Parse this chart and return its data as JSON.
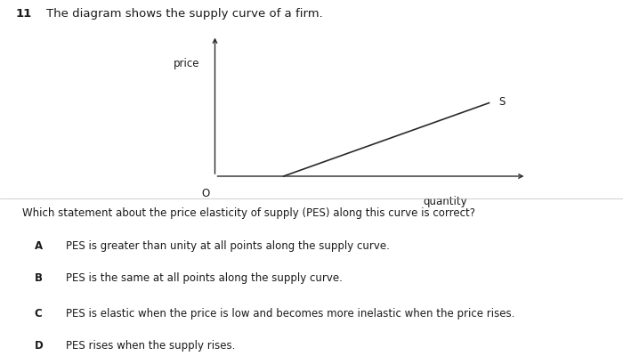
{
  "title_number": "11",
  "title_text": "The diagram shows the supply curve of a firm.",
  "price_label": "price",
  "quantity_label": "quantity",
  "origin_label": "O",
  "supply_label": "S",
  "question": "Which statement about the price elasticity of supply (PES) along this curve is correct?",
  "options": [
    {
      "label": "A",
      "text": "PES is greater than unity at all points along the supply curve."
    },
    {
      "label": "B",
      "text": "PES is the same at all points along the supply curve."
    },
    {
      "label": "C",
      "text": "PES is elastic when the price is low and becomes more inelastic when the price rises."
    },
    {
      "label": "D",
      "text": "PES rises when the supply rises."
    }
  ],
  "bg_color": "#ffffff",
  "line_color": "#2a2a2a",
  "text_color": "#1a1a1a",
  "font_size_title": 9.5,
  "font_size_labels": 8.5,
  "font_size_question": 8.5,
  "font_size_options": 8.5
}
